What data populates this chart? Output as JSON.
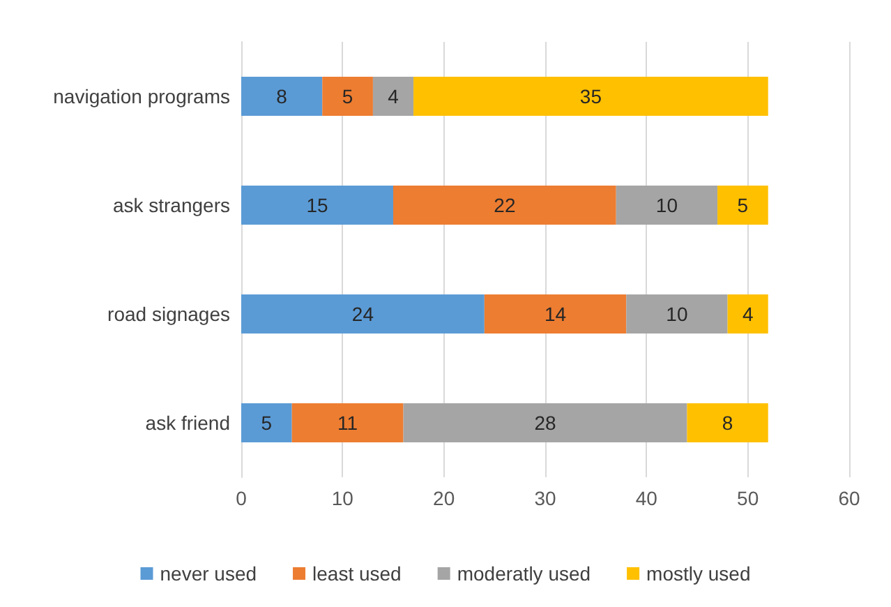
{
  "chart_data": {
    "type": "bar",
    "orientation": "horizontal",
    "stacked": true,
    "categories": [
      "navigation programs",
      "ask strangers",
      "road signages",
      "ask friend"
    ],
    "series": [
      {
        "name": "never used",
        "color": "#5b9bd5",
        "values": [
          8,
          15,
          24,
          5
        ]
      },
      {
        "name": "least used",
        "color": "#ed7d31",
        "values": [
          5,
          22,
          14,
          11
        ]
      },
      {
        "name": "moderatly used",
        "color": "#a5a5a5",
        "values": [
          4,
          10,
          10,
          28
        ]
      },
      {
        "name": "mostly used",
        "color": "#ffc000",
        "values": [
          35,
          5,
          4,
          8
        ]
      }
    ],
    "xlim": [
      0,
      60
    ],
    "xticks": [
      0,
      10,
      20,
      30,
      40,
      50,
      60
    ],
    "grid": "x",
    "legend": "bottom",
    "data_labels": true
  }
}
